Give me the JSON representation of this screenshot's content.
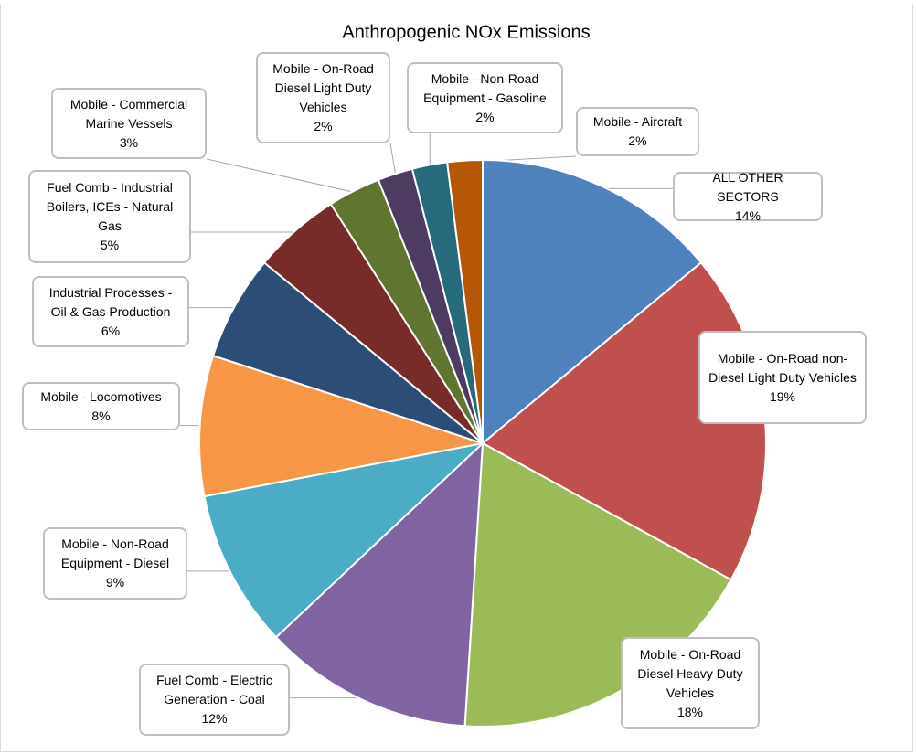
{
  "chart_data": {
    "type": "pie",
    "title": "Anthropogenic NOx Emissions",
    "categories": [
      "ALL OTHER SECTORS",
      "Mobile - On-Road non-Diesel Light Duty Vehicles",
      "Mobile - On-Road Diesel Heavy Duty Vehicles",
      "Fuel Comb - Electric Generation - Coal",
      "Mobile - Non-Road Equipment - Diesel",
      "Mobile - Locomotives",
      "Industrial Processes - Oil & Gas Production",
      "Fuel Comb - Industrial Boilers, ICEs - Natural Gas",
      "Mobile - Commercial Marine Vessels",
      "Mobile - On-Road Diesel Light Duty Vehicles",
      "Mobile - Non-Road Equipment - Gasoline",
      "Mobile - Aircraft"
    ],
    "values": [
      14,
      19,
      18,
      12,
      9,
      8,
      6,
      5,
      3,
      2,
      2,
      2
    ],
    "value_labels": [
      "14%",
      "19%",
      "18%",
      "12%",
      "9%",
      "8%",
      "6%",
      "5%",
      "3%",
      "2%",
      "2%",
      "2%"
    ],
    "colors": [
      "#4f81bd",
      "#c0504d",
      "#9bbb59",
      "#8064a2",
      "#4bacc6",
      "#f79646",
      "#2c4d75",
      "#772c2a",
      "#5f7530",
      "#4d3b62",
      "#276a7c",
      "#b65708"
    ]
  }
}
